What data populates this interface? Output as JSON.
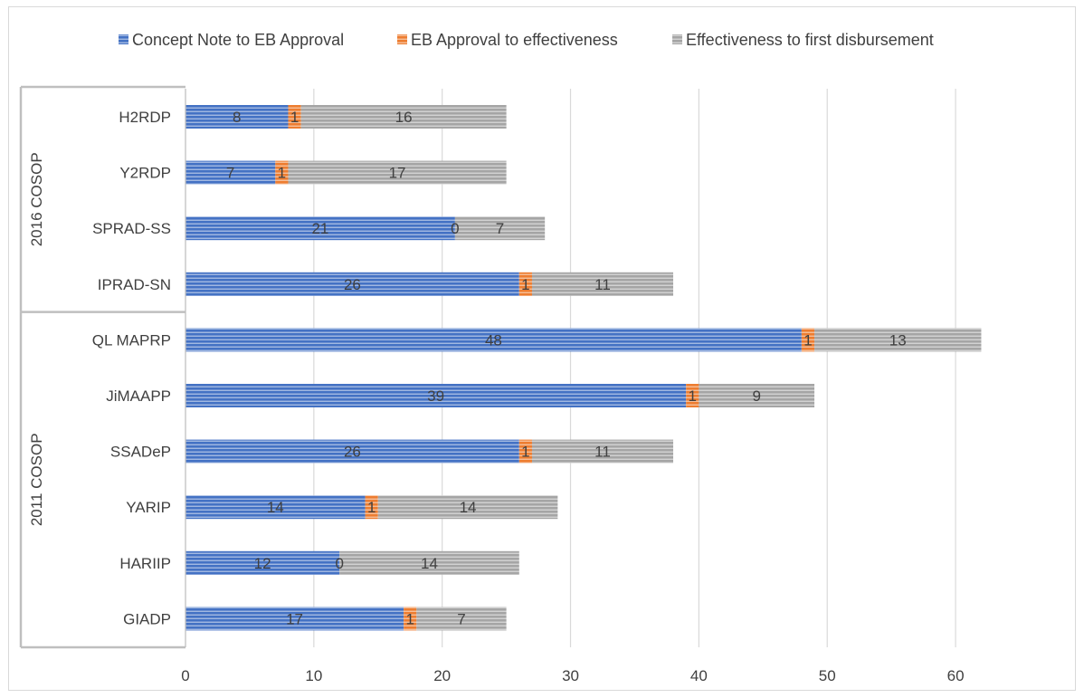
{
  "chart_data": {
    "type": "bar",
    "orientation": "horizontal",
    "stacked": true,
    "title": "",
    "xlabel": "",
    "ylabel": "",
    "xlim": [
      0,
      65
    ],
    "x_ticks": [
      0,
      10,
      20,
      30,
      40,
      50,
      60
    ],
    "grid": "vertical",
    "legend_position": "top",
    "groups": [
      {
        "label": "2016 COSOP",
        "categories": [
          "H2RDP",
          "Y2RDP",
          "SPRAD-SS",
          "IPRAD-SN"
        ]
      },
      {
        "label": "2011 COSOP",
        "categories": [
          "QL MAPRP",
          "JiMAAPP",
          "SSADeP",
          "YARIP",
          "HARIIP",
          "GIADP"
        ]
      }
    ],
    "categories": [
      "H2RDP",
      "Y2RDP",
      "SPRAD-SS",
      "IPRAD-SN",
      "QL MAPRP",
      "JiMAAPP",
      "SSADeP",
      "YARIP",
      "HARIIP",
      "GIADP"
    ],
    "series": [
      {
        "name": "Concept Note to EB Approval",
        "color": "#4472c4",
        "values": [
          8,
          7,
          21,
          26,
          48,
          39,
          26,
          14,
          12,
          17
        ]
      },
      {
        "name": "EB Approval to effectiveness",
        "color": "#ed7d31",
        "values": [
          1,
          1,
          0,
          1,
          1,
          1,
          1,
          1,
          0,
          1
        ]
      },
      {
        "name": "Effectiveness to first disbursement",
        "color": "#a5a5a5",
        "values": [
          16,
          17,
          7,
          11,
          13,
          9,
          11,
          14,
          14,
          7
        ]
      }
    ]
  }
}
